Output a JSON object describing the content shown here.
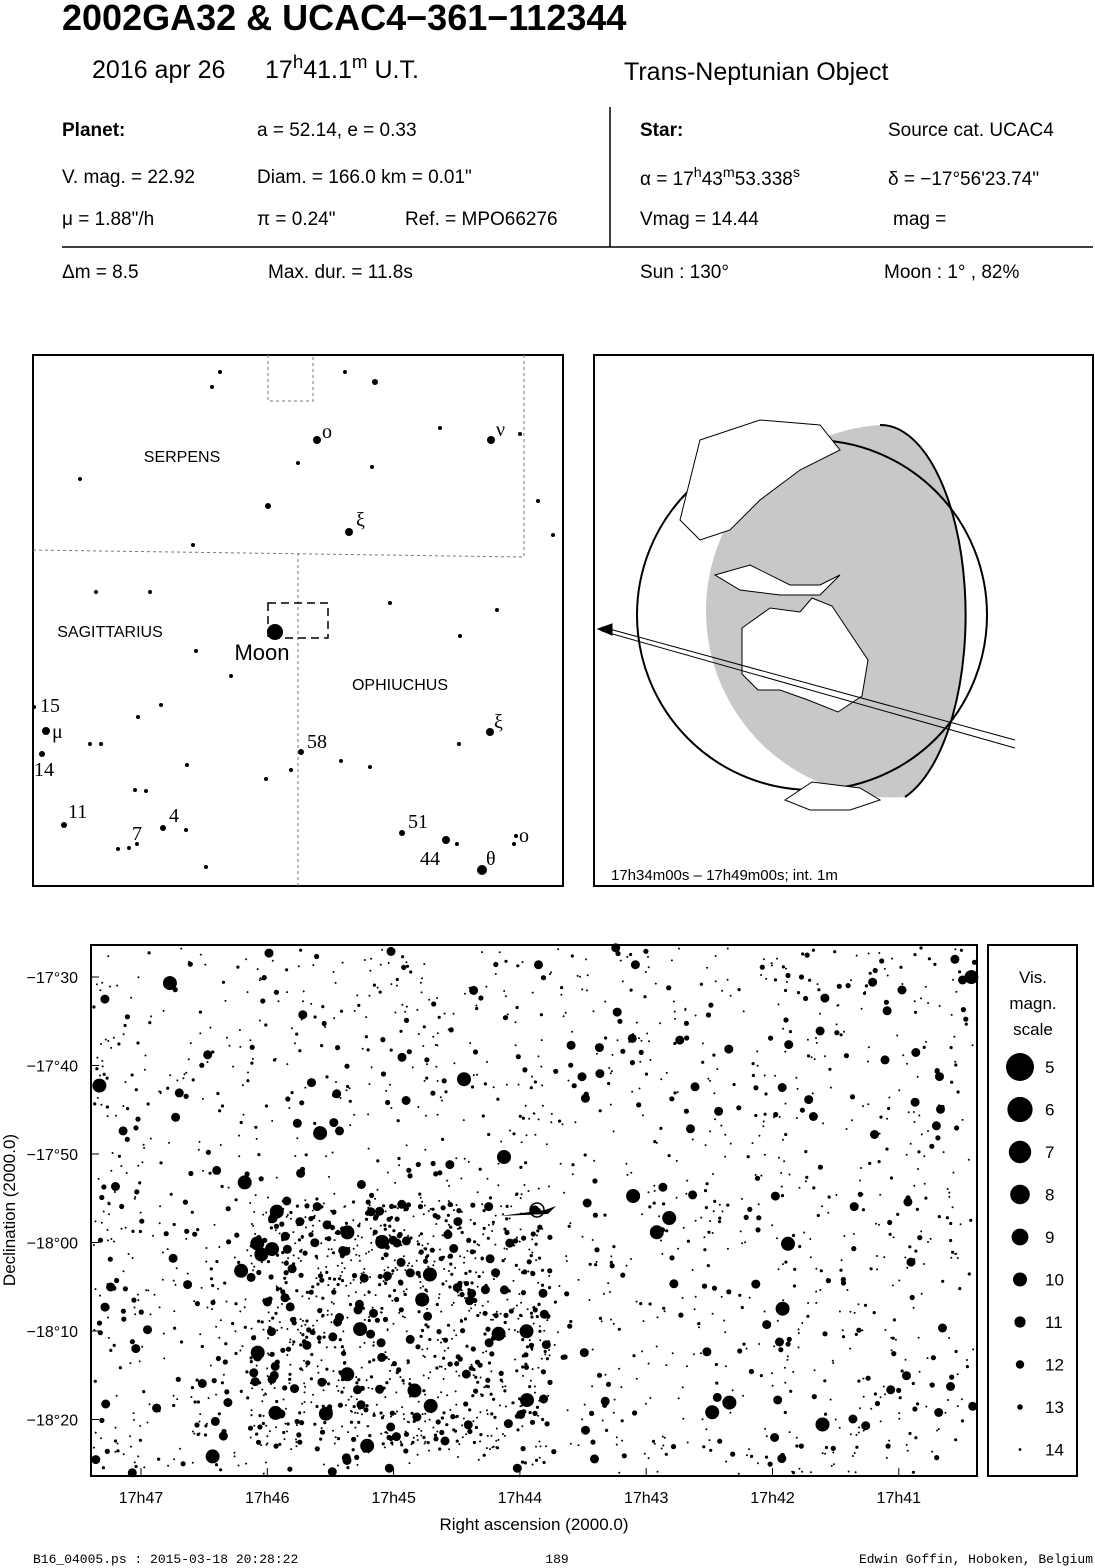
{
  "header": {
    "title": "2002GA32  &  UCAC4−361−112344",
    "date": "2016 apr 26",
    "time_parts": [
      "17",
      "h",
      "41.1",
      "m",
      " U.T."
    ],
    "object_type": "Trans-Neptunian Object"
  },
  "planet": {
    "label": "Planet:",
    "orbit": "a = 52.14, e = 0.33",
    "vmag": "V. mag. = 22.92",
    "diameter": "Diam. = 166.0 km = 0.01\"",
    "motion": "μ =  1.88\"/h",
    "parallax": "π =  0.24\"",
    "reference": "Ref. = MPO66276"
  },
  "star": {
    "label": "Star:",
    "source": "Source cat.  UCAC4",
    "ra_parts": [
      "α = 17",
      "h",
      "43",
      "m",
      "53.338",
      "s"
    ],
    "dec": "δ = −17°56'23.74\"",
    "vmag": "Vmag = 14.44",
    "mag": "mag ="
  },
  "summary": {
    "delta_mag": "Δm = 8.5",
    "max_duration": "Max. dur. = 11.8s",
    "sun": "Sun : 130°",
    "moon": "Moon :   1° , 82%"
  },
  "star_map": {
    "labels": [
      "SERPENS",
      "SAGITTARIUS",
      "OPHIUCHUS",
      "Moon",
      "o",
      "ν",
      "ξ",
      "15",
      "μ",
      "14",
      "58",
      "ξ",
      "11",
      "7",
      "4",
      "51",
      "44",
      "o",
      "θ"
    ]
  },
  "globe": {
    "caption": "17h34m00s – 17h49m00s; int.  1m"
  },
  "field_chart": {
    "x_ticks": [
      "17h47",
      "17h46",
      "17h45",
      "17h44",
      "17h43",
      "17h42",
      "17h41"
    ],
    "y_ticks": [
      "−17°30",
      "−17°40",
      "−17°50",
      "−18°00",
      "−18°10",
      "−18°20"
    ],
    "x_label": "Right ascension (2000.0)",
    "y_label": "Declination (2000.0)",
    "legend": {
      "title": [
        "Vis.",
        "magn.",
        "scale"
      ],
      "magnitudes": [
        5,
        6,
        7,
        8,
        9,
        10,
        11,
        12,
        13,
        14
      ]
    }
  },
  "footer": {
    "file": "B16_04005.ps : 2015-03-18 20:28:22",
    "page": "189",
    "author": "Edwin Goffin, Hoboken, Belgium"
  }
}
